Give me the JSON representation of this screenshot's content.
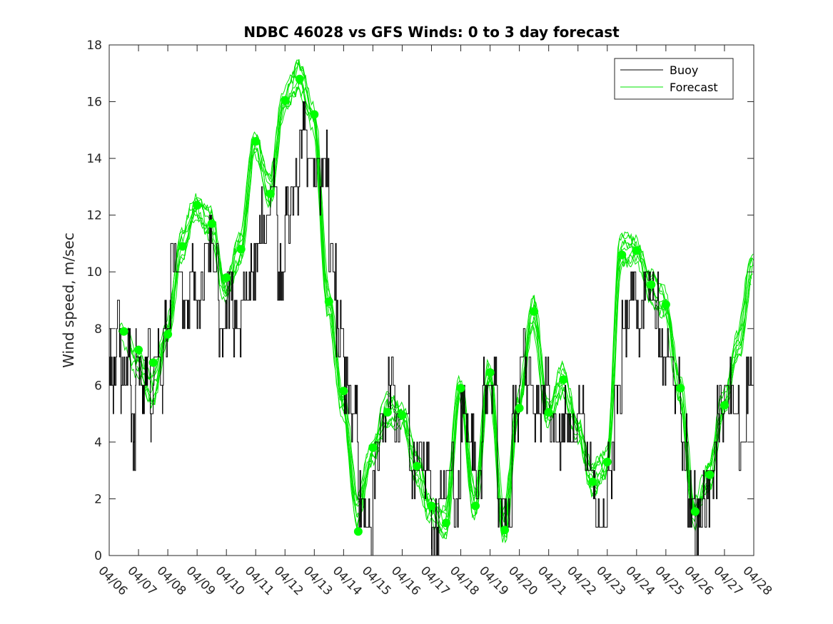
{
  "chart_data": {
    "type": "line",
    "title": "NDBC 46028 vs GFS Winds: 0 to 3 day forecast",
    "xlabel": "",
    "ylabel": "Wind speed, m/sec",
    "xlim": [
      "04/06",
      "04/28"
    ],
    "ylim": [
      0,
      18
    ],
    "yticks": [
      0,
      2,
      4,
      6,
      8,
      10,
      12,
      14,
      16,
      18
    ],
    "xticks": [
      "04/06",
      "04/07",
      "04/08",
      "04/09",
      "04/10",
      "04/11",
      "04/12",
      "04/13",
      "04/14",
      "04/15",
      "04/16",
      "04/17",
      "04/18",
      "04/19",
      "04/20",
      "04/21",
      "04/22",
      "04/23",
      "04/24",
      "04/25",
      "04/26",
      "04/27",
      "04/28"
    ],
    "grid": false,
    "legend": {
      "position": "top-right",
      "entries": [
        "Buoy",
        "Forecast"
      ]
    },
    "colors": {
      "buoy": "#000000",
      "forecast": "#00e600",
      "marker": "#00ff00",
      "axis": "#262626"
    },
    "series": [
      {
        "name": "Buoy",
        "style": "step",
        "points": [
          [
            0.0,
            7
          ],
          [
            0.1,
            6
          ],
          [
            0.25,
            8
          ],
          [
            0.4,
            6
          ],
          [
            0.5,
            7
          ],
          [
            0.75,
            4
          ],
          [
            0.9,
            7
          ],
          [
            1.0,
            6
          ],
          [
            1.2,
            7
          ],
          [
            1.4,
            5
          ],
          [
            1.5,
            7
          ],
          [
            1.75,
            6
          ],
          [
            1.85,
            8
          ],
          [
            2.0,
            8
          ],
          [
            2.1,
            10
          ],
          [
            2.5,
            9
          ],
          [
            2.75,
            10
          ],
          [
            3.0,
            9
          ],
          [
            3.25,
            11
          ],
          [
            3.5,
            10
          ],
          [
            3.75,
            8
          ],
          [
            4.0,
            9
          ],
          [
            4.25,
            8
          ],
          [
            4.5,
            9
          ],
          [
            4.75,
            10
          ],
          [
            5.0,
            11
          ],
          [
            5.2,
            12
          ],
          [
            5.5,
            13
          ],
          [
            5.75,
            10
          ],
          [
            6.0,
            12
          ],
          [
            6.2,
            13
          ],
          [
            6.5,
            15
          ],
          [
            6.75,
            14
          ],
          [
            7.0,
            13
          ],
          [
            7.25,
            14
          ],
          [
            7.5,
            10
          ],
          [
            7.75,
            8
          ],
          [
            8.0,
            6
          ],
          [
            8.25,
            5
          ],
          [
            8.5,
            2
          ],
          [
            8.75,
            1
          ],
          [
            9.0,
            3
          ],
          [
            9.25,
            5
          ],
          [
            9.5,
            6
          ],
          [
            9.75,
            5
          ],
          [
            10.0,
            5
          ],
          [
            10.25,
            3
          ],
          [
            10.5,
            4
          ],
          [
            10.75,
            3
          ],
          [
            11.0,
            1
          ],
          [
            11.25,
            2
          ],
          [
            11.5,
            3
          ],
          [
            11.75,
            2
          ],
          [
            12.0,
            5
          ],
          [
            12.25,
            4
          ],
          [
            12.5,
            3
          ],
          [
            12.75,
            6
          ],
          [
            13.0,
            6
          ],
          [
            13.25,
            2
          ],
          [
            13.5,
            1
          ],
          [
            13.75,
            5
          ],
          [
            14.0,
            7
          ],
          [
            14.25,
            6
          ],
          [
            14.5,
            5
          ],
          [
            14.75,
            6
          ],
          [
            15.0,
            5
          ],
          [
            15.25,
            4
          ],
          [
            15.5,
            5
          ],
          [
            15.75,
            4
          ],
          [
            16.0,
            5
          ],
          [
            16.25,
            3
          ],
          [
            16.5,
            2
          ],
          [
            16.75,
            1
          ],
          [
            17.0,
            3
          ],
          [
            17.25,
            6
          ],
          [
            17.5,
            8
          ],
          [
            17.75,
            9
          ],
          [
            18.0,
            8
          ],
          [
            18.25,
            10
          ],
          [
            18.5,
            9
          ],
          [
            18.75,
            7
          ],
          [
            19.0,
            7
          ],
          [
            19.25,
            6
          ],
          [
            19.5,
            4
          ],
          [
            19.75,
            2
          ],
          [
            20.0,
            1
          ],
          [
            20.25,
            2
          ],
          [
            20.5,
            3
          ],
          [
            20.75,
            5
          ],
          [
            21.0,
            6
          ],
          [
            21.25,
            5
          ],
          [
            21.5,
            4
          ],
          [
            21.75,
            6
          ],
          [
            22.0,
            6
          ]
        ]
      },
      {
        "name": "Forecast",
        "style": "multi-line",
        "points": [
          [
            0.0,
            6.2
          ],
          [
            0.5,
            7.6
          ],
          [
            1.0,
            6.8
          ],
          [
            1.5,
            5.8
          ],
          [
            2.0,
            7.8
          ],
          [
            2.5,
            10.9
          ],
          [
            3.0,
            12.3
          ],
          [
            3.5,
            11.7
          ],
          [
            4.0,
            9.3
          ],
          [
            4.5,
            10.8
          ],
          [
            5.0,
            14.6
          ],
          [
            5.5,
            12.8
          ],
          [
            6.0,
            16.0
          ],
          [
            6.5,
            16.9
          ],
          [
            7.0,
            15.5
          ],
          [
            7.5,
            9.0
          ],
          [
            8.0,
            5.3
          ],
          [
            8.5,
            1.6
          ],
          [
            9.0,
            3.6
          ],
          [
            9.5,
            5.1
          ],
          [
            10.0,
            5.0
          ],
          [
            10.5,
            3.2
          ],
          [
            11.0,
            1.6
          ],
          [
            11.5,
            1.1
          ],
          [
            12.0,
            5.9
          ],
          [
            12.5,
            1.8
          ],
          [
            13.0,
            6.4
          ],
          [
            13.5,
            1.0
          ],
          [
            14.0,
            5.3
          ],
          [
            14.5,
            8.6
          ],
          [
            15.0,
            5.0
          ],
          [
            15.5,
            6.2
          ],
          [
            16.0,
            4.5
          ],
          [
            16.5,
            2.7
          ],
          [
            17.0,
            3.2
          ],
          [
            17.5,
            10.8
          ],
          [
            18.0,
            10.8
          ],
          [
            18.5,
            9.5
          ],
          [
            19.0,
            8.9
          ],
          [
            19.5,
            5.9
          ],
          [
            20.0,
            1.5
          ],
          [
            20.5,
            2.8
          ],
          [
            21.0,
            5.3
          ],
          [
            21.5,
            7.5
          ],
          [
            22.0,
            10.3
          ]
        ]
      }
    ],
    "markers": [
      [
        0.5,
        7.9
      ],
      [
        1.0,
        7.25
      ],
      [
        1.5,
        6.8
      ],
      [
        2.0,
        7.8
      ],
      [
        2.5,
        10.9
      ],
      [
        3.0,
        12.35
      ],
      [
        3.5,
        11.7
      ],
      [
        4.0,
        9.8
      ],
      [
        4.5,
        10.8
      ],
      [
        5.0,
        14.6
      ],
      [
        5.5,
        12.75
      ],
      [
        6.0,
        16.05
      ],
      [
        6.5,
        16.8
      ],
      [
        7.0,
        15.55
      ],
      [
        7.5,
        8.95
      ],
      [
        8.0,
        5.8
      ],
      [
        8.5,
        0.85
      ],
      [
        9.0,
        3.8
      ],
      [
        9.5,
        5.05
      ],
      [
        10.0,
        4.95
      ],
      [
        10.5,
        3.15
      ],
      [
        11.0,
        1.75
      ],
      [
        11.5,
        1.15
      ],
      [
        12.0,
        5.9
      ],
      [
        12.5,
        1.75
      ],
      [
        13.0,
        6.45
      ],
      [
        13.5,
        0.9
      ],
      [
        14.0,
        5.2
      ],
      [
        14.5,
        8.6
      ],
      [
        15.0,
        5.05
      ],
      [
        15.5,
        6.2
      ],
      [
        16.5,
        2.6
      ],
      [
        17.0,
        3.3
      ],
      [
        17.5,
        10.6
      ],
      [
        18.0,
        10.75
      ],
      [
        18.5,
        9.55
      ],
      [
        19.0,
        8.85
      ],
      [
        19.5,
        5.9
      ],
      [
        20.0,
        1.55
      ],
      [
        20.5,
        2.85
      ],
      [
        21.0,
        5.3
      ]
    ]
  }
}
